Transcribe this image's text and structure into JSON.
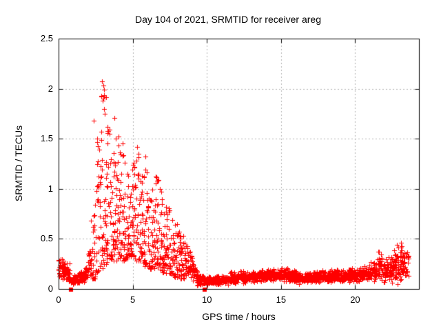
{
  "chart_data": {
    "type": "scatter",
    "title": "Day 104 of 2021, SRMTID for receiver areg",
    "xlabel": "GPS time / hours",
    "ylabel": "SRMTID / TECUs",
    "xlim": [
      0,
      24.3
    ],
    "ylim": [
      0,
      2.5
    ],
    "xticks": [
      0,
      5,
      10,
      15,
      20
    ],
    "xtick_labels": [
      "0",
      "5",
      "10",
      "15",
      "20"
    ],
    "yticks": [
      0,
      0.5,
      1,
      1.5,
      2,
      2.5
    ],
    "ytick_labels": [
      "0",
      "0.5",
      "1",
      "1.5",
      "2",
      "2.5"
    ],
    "grid": true,
    "legend": "none",
    "marker": "plus",
    "marker_color": "#ff0000",
    "grid_color": "#b2b2b2",
    "border_color": "#000000",
    "seed": 104,
    "density_bins_format": [
      "x_start_hours",
      "x_end_hours",
      "num_points",
      "y_min_TECU",
      "y_max_TECU"
    ],
    "density_bins": [
      [
        0.0,
        0.25,
        26,
        0.1,
        0.33
      ],
      [
        0.25,
        0.5,
        26,
        0.08,
        0.3
      ],
      [
        0.5,
        0.75,
        26,
        0.07,
        0.28
      ],
      [
        0.75,
        1.0,
        16,
        0.01,
        0.16
      ],
      [
        1.0,
        1.25,
        24,
        0.05,
        0.15
      ],
      [
        1.25,
        1.5,
        24,
        0.04,
        0.17
      ],
      [
        1.5,
        1.75,
        24,
        0.05,
        0.2
      ],
      [
        1.75,
        2.0,
        24,
        0.06,
        0.25
      ],
      [
        2.0,
        2.25,
        22,
        0.08,
        0.5
      ],
      [
        2.25,
        2.5,
        22,
        0.1,
        0.85
      ],
      [
        2.5,
        2.75,
        24,
        0.15,
        1.55
      ],
      [
        2.75,
        3.0,
        26,
        0.2,
        2.0
      ],
      [
        3.0,
        3.25,
        26,
        0.25,
        2.05
      ],
      [
        3.25,
        3.5,
        26,
        0.25,
        1.6
      ],
      [
        3.5,
        3.75,
        26,
        0.28,
        1.45
      ],
      [
        3.75,
        4.0,
        26,
        0.28,
        1.5
      ],
      [
        4.0,
        4.25,
        26,
        0.3,
        1.5
      ],
      [
        4.25,
        4.5,
        26,
        0.28,
        1.35
      ],
      [
        4.5,
        4.75,
        26,
        0.3,
        1.15
      ],
      [
        4.75,
        5.0,
        26,
        0.32,
        1.2
      ],
      [
        5.0,
        5.25,
        26,
        0.3,
        1.3
      ],
      [
        5.25,
        5.5,
        24,
        0.28,
        1.4
      ],
      [
        5.5,
        5.75,
        24,
        0.25,
        1.2
      ],
      [
        5.75,
        6.0,
        24,
        0.22,
        1.3
      ],
      [
        6.0,
        6.25,
        24,
        0.2,
        0.95
      ],
      [
        6.25,
        6.5,
        24,
        0.2,
        1.0
      ],
      [
        6.5,
        6.75,
        24,
        0.2,
        1.12
      ],
      [
        6.75,
        7.0,
        24,
        0.18,
        1.05
      ],
      [
        7.0,
        7.25,
        24,
        0.16,
        0.8
      ],
      [
        7.25,
        7.5,
        22,
        0.15,
        0.82
      ],
      [
        7.5,
        7.75,
        22,
        0.14,
        0.78
      ],
      [
        7.75,
        8.0,
        22,
        0.12,
        0.65
      ],
      [
        8.0,
        8.25,
        22,
        0.1,
        0.58
      ],
      [
        8.25,
        8.5,
        22,
        0.1,
        0.55
      ],
      [
        8.5,
        8.75,
        22,
        0.08,
        0.48
      ],
      [
        8.75,
        9.0,
        22,
        0.06,
        0.4
      ],
      [
        9.0,
        9.25,
        22,
        0.05,
        0.3
      ],
      [
        9.25,
        9.5,
        24,
        0.03,
        0.22
      ],
      [
        9.5,
        9.75,
        24,
        0.02,
        0.16
      ],
      [
        9.75,
        10.0,
        24,
        0.02,
        0.14
      ],
      [
        10.0,
        10.5,
        50,
        0.03,
        0.13
      ],
      [
        10.5,
        11.0,
        50,
        0.04,
        0.14
      ],
      [
        11.0,
        11.5,
        50,
        0.04,
        0.15
      ],
      [
        11.5,
        12.0,
        50,
        0.03,
        0.18
      ],
      [
        12.0,
        12.5,
        50,
        0.05,
        0.2
      ],
      [
        12.5,
        13.0,
        50,
        0.05,
        0.17
      ],
      [
        13.0,
        13.5,
        50,
        0.06,
        0.19
      ],
      [
        13.5,
        14.0,
        50,
        0.06,
        0.2
      ],
      [
        14.0,
        14.5,
        50,
        0.07,
        0.2
      ],
      [
        14.5,
        15.0,
        50,
        0.07,
        0.21
      ],
      [
        15.0,
        15.5,
        50,
        0.07,
        0.22
      ],
      [
        15.5,
        16.0,
        50,
        0.06,
        0.2
      ],
      [
        16.0,
        16.5,
        50,
        0.05,
        0.18
      ],
      [
        16.5,
        17.0,
        50,
        0.05,
        0.18
      ],
      [
        17.0,
        17.5,
        50,
        0.05,
        0.19
      ],
      [
        17.5,
        18.0,
        50,
        0.06,
        0.19
      ],
      [
        18.0,
        18.5,
        50,
        0.06,
        0.2
      ],
      [
        18.5,
        19.0,
        50,
        0.05,
        0.2
      ],
      [
        19.0,
        19.5,
        50,
        0.06,
        0.2
      ],
      [
        19.5,
        20.0,
        50,
        0.06,
        0.21
      ],
      [
        20.0,
        20.5,
        50,
        0.07,
        0.22
      ],
      [
        20.5,
        21.0,
        50,
        0.07,
        0.24
      ],
      [
        21.0,
        21.5,
        46,
        0.06,
        0.28
      ],
      [
        21.5,
        21.8,
        28,
        0.06,
        0.38
      ],
      [
        21.8,
        22.2,
        38,
        0.05,
        0.3
      ],
      [
        22.2,
        22.6,
        38,
        0.05,
        0.35
      ],
      [
        22.6,
        23.0,
        38,
        0.04,
        0.45
      ],
      [
        23.0,
        23.35,
        38,
        0.05,
        0.47
      ],
      [
        23.35,
        23.6,
        18,
        0.08,
        0.4
      ]
    ],
    "peak_points": [
      [
        2.2,
        0.68
      ],
      [
        2.37,
        1.68
      ],
      [
        2.62,
        1.5
      ],
      [
        2.9,
        1.92
      ],
      [
        2.95,
        2.07
      ],
      [
        3.0,
        2.03
      ],
      [
        3.02,
        1.9
      ],
      [
        3.05,
        1.99
      ],
      [
        3.08,
        1.8
      ],
      [
        3.12,
        1.75
      ],
      [
        3.3,
        1.62
      ],
      [
        3.45,
        1.55
      ],
      [
        3.78,
        1.71
      ],
      [
        3.85,
        1.5
      ],
      [
        4.05,
        1.52
      ],
      [
        4.3,
        1.45
      ],
      [
        5.3,
        1.42
      ],
      [
        5.4,
        1.35
      ],
      [
        5.85,
        1.32
      ],
      [
        6.55,
        1.12
      ],
      [
        6.65,
        1.08
      ],
      [
        21.6,
        0.37
      ],
      [
        22.8,
        0.44
      ],
      [
        22.9,
        0.41
      ],
      [
        23.1,
        0.46
      ],
      [
        23.15,
        0.43
      ]
    ],
    "zero_points": [
      [
        0.82,
        0.0
      ],
      [
        9.85,
        0.0
      ]
    ]
  }
}
